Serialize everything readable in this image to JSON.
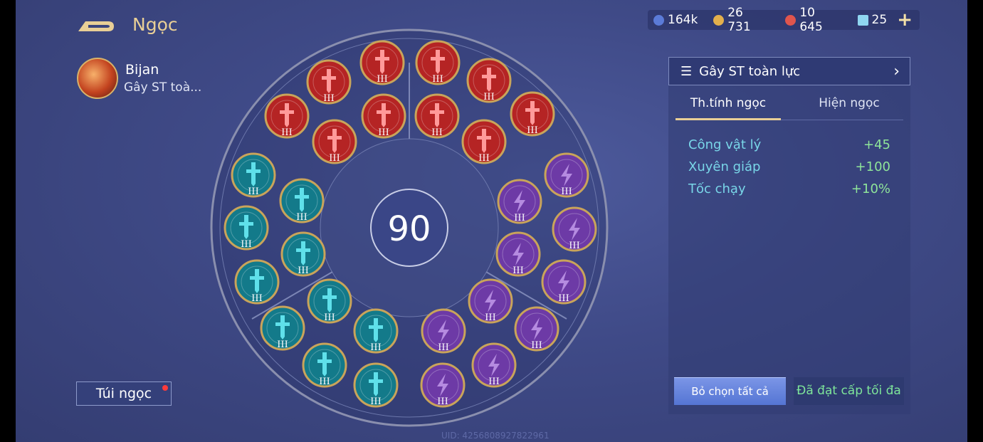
{
  "header": {
    "title": "Ngọc",
    "back_icon": "back-arrow-icon"
  },
  "hero": {
    "name": "Bijan",
    "set_name": "Gây ST toà..."
  },
  "currency": [
    {
      "icon": "blue-orb-icon",
      "value": "164k",
      "color": "#5b7bd8"
    },
    {
      "icon": "gold-coin-icon",
      "value": "26 731",
      "color": "#e3b04c"
    },
    {
      "icon": "red-gem-icon",
      "value": "10 645",
      "color": "#e0554d"
    },
    {
      "icon": "card-ticket-icon",
      "value": "25",
      "color": "#8fd6f0"
    }
  ],
  "add_label": "+",
  "bag_button": "Túi ngọc",
  "level": "90",
  "uid": "UID: 4256808927822961",
  "gems": {
    "level_label": "III",
    "red": {
      "color": "#b52424",
      "count": 10
    },
    "teal": {
      "color": "#137a8a",
      "count": 10
    },
    "purple": {
      "color": "#6d3aa6",
      "count": 10
    }
  },
  "panel": {
    "set_selector": "Gây ST toàn lực",
    "tabs": [
      "Th.tính ngọc",
      "Hiện ngọc"
    ],
    "active_tab": 0,
    "stats": [
      {
        "name": "Công vật lý",
        "value": "+45"
      },
      {
        "name": "Xuyên giáp",
        "value": "+100"
      },
      {
        "name": "Tốc chạy",
        "value": "+10%"
      }
    ],
    "clear_button": "Bỏ chọn tất cả",
    "max_button": "Đã đạt cấp tối đa"
  }
}
